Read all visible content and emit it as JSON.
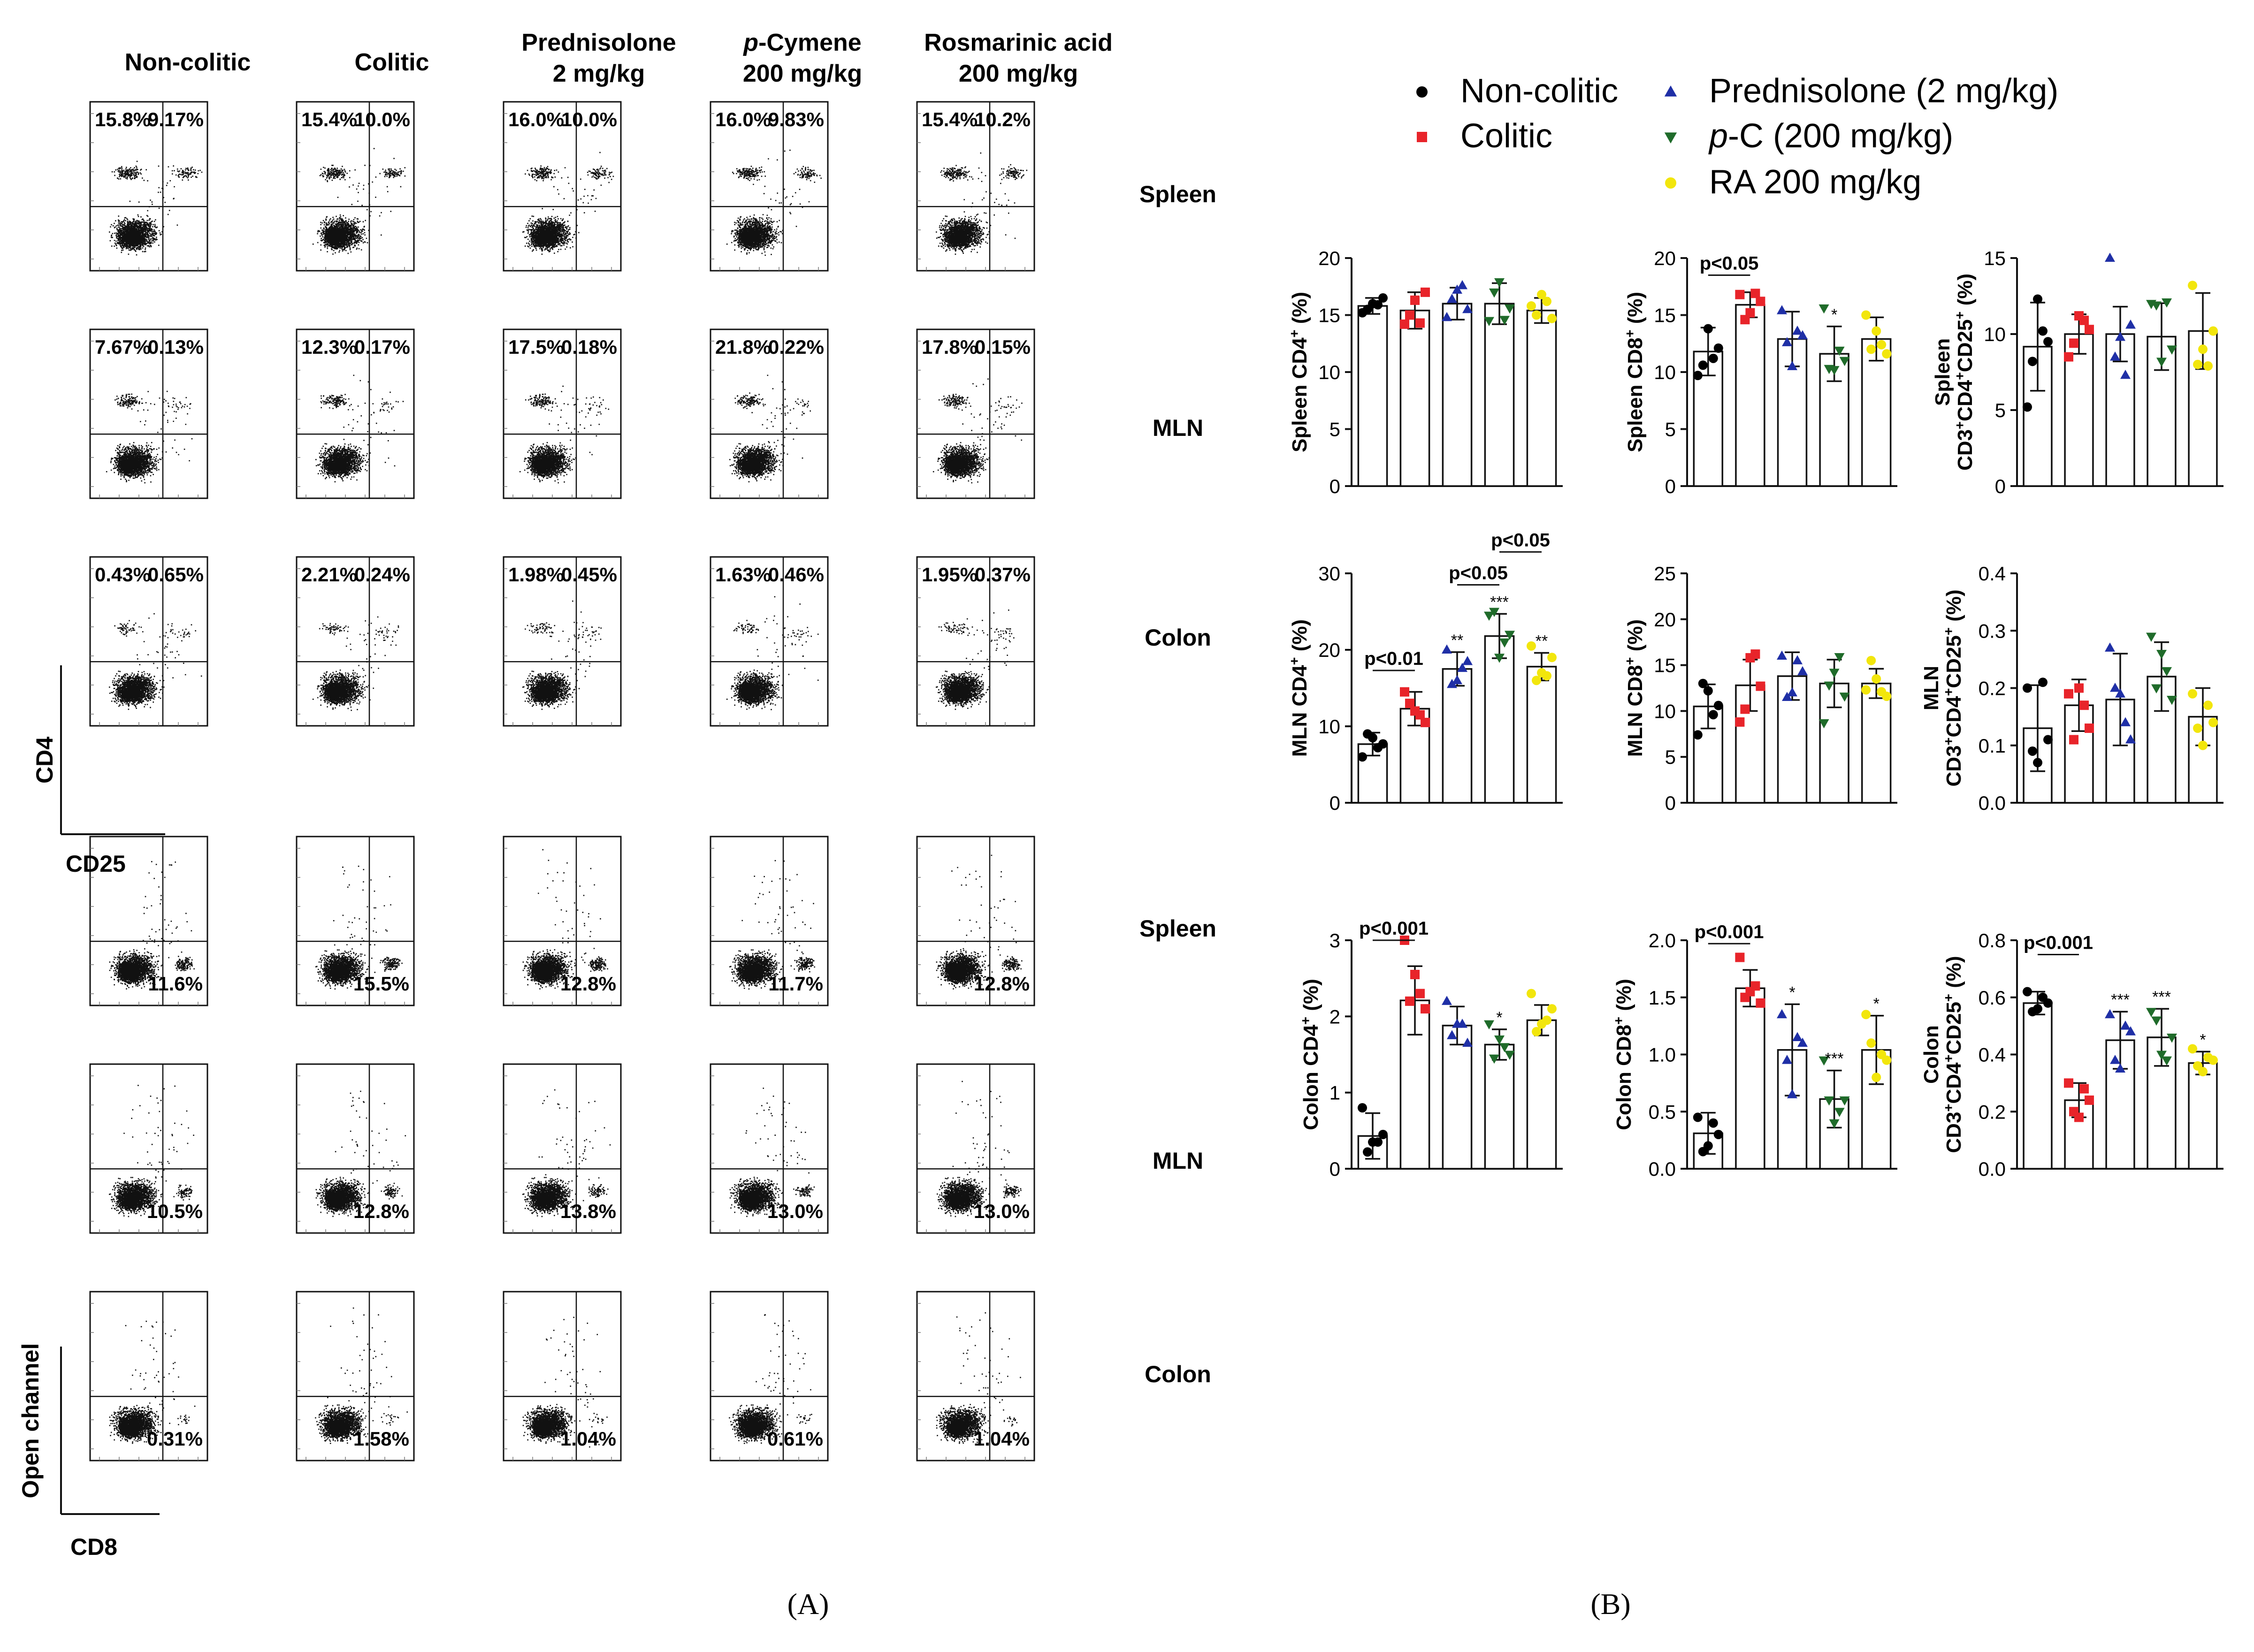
{
  "panel_labels": {
    "a": "(A)",
    "b": "(B)"
  },
  "flow": {
    "group_headers": [
      [
        "Non-colitic"
      ],
      [
        "Colitic"
      ],
      [
        "Prednisolone",
        "2 mg/kg"
      ],
      [
        "p-Cymene",
        "200 mg/kg"
      ],
      [
        "Rosmarinic acid",
        "200 mg/kg"
      ]
    ],
    "tissues": [
      "Spleen",
      "MLN",
      "Colon"
    ],
    "cd4_section": {
      "y_axis_label": "CD4",
      "x_axis_label": "CD25",
      "rows": [
        [
          [
            "15.8%",
            "9.17%"
          ],
          [
            "15.4%",
            "10.0%"
          ],
          [
            "16.0%",
            "10.0%"
          ],
          [
            "16.0%",
            "9.83%"
          ],
          [
            "15.4%",
            "10.2%"
          ]
        ],
        [
          [
            "7.67%",
            "0.13%"
          ],
          [
            "12.3%",
            "0.17%"
          ],
          [
            "17.5%",
            "0.18%"
          ],
          [
            "21.8%",
            "0.22%"
          ],
          [
            "17.8%",
            "0.15%"
          ]
        ],
        [
          [
            "0.43%",
            "0.65%"
          ],
          [
            "2.21%",
            "0.24%"
          ],
          [
            "1.98%",
            "0.45%"
          ],
          [
            "1.63%",
            "0.46%"
          ],
          [
            "1.95%",
            "0.37%"
          ]
        ]
      ]
    },
    "cd8_section": {
      "y_axis_label": "Open channel",
      "x_axis_label": "CD8",
      "rows": [
        [
          "11.6%",
          "15.5%",
          "12.8%",
          "11.7%",
          "12.8%"
        ],
        [
          "10.5%",
          "12.8%",
          "13.8%",
          "13.0%",
          "13.0%"
        ],
        [
          "0.31%",
          "1.58%",
          "1.04%",
          "0.61%",
          "1.04%"
        ]
      ]
    }
  },
  "legend": {
    "items": [
      {
        "label": "Non-colitic",
        "symbol": "circle",
        "color": "#000000"
      },
      {
        "label": "Colitic",
        "symbol": "square",
        "color": "#e8242a"
      },
      {
        "label": "Prednisolone (2 mg/kg)",
        "symbol": "triangle-up",
        "color": "#1f2fa6"
      },
      {
        "label": "p-C (200 mg/kg)",
        "symbol": "triangle-down",
        "color": "#1f6b2a"
      },
      {
        "label": "RA 200 mg/kg",
        "symbol": "circle",
        "color": "#f2e60c"
      }
    ]
  },
  "chart_data": [
    {
      "type": "bar",
      "ylabel": "Spleen CD4⁺ (%)",
      "ylim": [
        0,
        20
      ],
      "ticks": [
        "0",
        "5",
        "10",
        "15",
        "20"
      ],
      "categories": [
        "Non-colitic",
        "Colitic",
        "Prednisolone (2 mg/kg)",
        "p-C (200 mg/kg)",
        "RA 200 mg/kg"
      ],
      "values": [
        15.8,
        15.4,
        16.0,
        16.0,
        15.4
      ],
      "errors": [
        0.7,
        1.6,
        1.4,
        1.8,
        1.1
      ],
      "points": [
        [
          15.2,
          16.0,
          16.5,
          15.5,
          15.9
        ],
        [
          14.2,
          16.3,
          17.0,
          15.0,
          14.3
        ],
        [
          14.8,
          17.2,
          15.5,
          16.4,
          17.6
        ],
        [
          14.5,
          17.9,
          15.6,
          17.0,
          14.6
        ],
        [
          15.8,
          16.8,
          14.7,
          15.0,
          16.2
        ]
      ],
      "stars": [
        "",
        "",
        "",
        "",
        ""
      ],
      "brackets": []
    },
    {
      "type": "bar",
      "ylabel": "Spleen CD8⁺ (%)",
      "ylim": [
        0,
        20
      ],
      "ticks": [
        "0",
        "5",
        "10",
        "15",
        "20"
      ],
      "categories": [
        "Non-colitic",
        "Colitic",
        "Prednisolone (2 mg/kg)",
        "p-C (200 mg/kg)",
        "RA 200 mg/kg"
      ],
      "values": [
        11.8,
        15.9,
        12.9,
        11.6,
        12.9
      ],
      "errors": [
        2.1,
        1.1,
        2.4,
        2.4,
        1.9
      ],
      "points": [
        [
          9.7,
          13.8,
          12.1,
          10.6,
          11.2
        ],
        [
          16.8,
          15.2,
          16.2,
          14.6,
          16.9
        ],
        [
          15.4,
          10.5,
          13.2,
          12.6,
          13.6
        ],
        [
          15.6,
          10.2,
          11.0,
          10.3,
          11.9
        ],
        [
          15.0,
          13.6,
          11.6,
          12.0,
          12.4
        ]
      ],
      "stars": [
        "",
        "",
        "",
        "*",
        ""
      ],
      "brackets": [
        {
          "from": 0,
          "to": 1,
          "label": "p<0.05",
          "y": 18.5
        }
      ]
    },
    {
      "type": "bar",
      "ylabel": "Spleen CD3⁺CD4⁺CD25⁺ (%)",
      "ylim": [
        0,
        15
      ],
      "ticks": [
        "0",
        "5",
        "10",
        "15"
      ],
      "categories": [
        "Non-colitic",
        "Colitic",
        "Prednisolone (2 mg/kg)",
        "p-C (200 mg/kg)",
        "RA 200 mg/kg"
      ],
      "values": [
        9.17,
        10.0,
        10.0,
        9.83,
        10.2
      ],
      "errors": [
        2.9,
        1.3,
        1.8,
        2.2,
        2.5
      ],
      "points": [
        [
          5.2,
          12.3,
          9.5,
          8.2,
          10.2
        ],
        [
          8.5,
          11.2,
          10.3,
          9.4,
          10.9
        ],
        [
          15.0,
          9.8,
          10.6,
          8.5,
          7.3
        ],
        [
          12.0,
          8.2,
          9.0,
          11.9,
          12.1
        ],
        [
          13.2,
          9.0,
          10.2,
          8.0,
          7.9
        ]
      ],
      "stars": [
        "",
        "",
        "",
        "",
        ""
      ],
      "brackets": []
    },
    {
      "type": "bar",
      "ylabel": "MLN CD4⁺ (%)",
      "ylim": [
        0,
        30
      ],
      "ticks": [
        "0",
        "10",
        "20",
        "30"
      ],
      "categories": [
        "Non-colitic",
        "Colitic",
        "Prednisolone (2 mg/kg)",
        "p-C (200 mg/kg)",
        "RA 200 mg/kg"
      ],
      "values": [
        7.67,
        12.3,
        17.5,
        21.8,
        17.8
      ],
      "errors": [
        1.5,
        2.2,
        2.2,
        2.9,
        1.8
      ],
      "points": [
        [
          6.0,
          8.5,
          7.7,
          9.0,
          7.2
        ],
        [
          14.5,
          12.0,
          10.5,
          13.0,
          11.5
        ],
        [
          20.0,
          16.0,
          18.5,
          15.5,
          17.6
        ],
        [
          24.5,
          19.0,
          22.0,
          25.0,
          21.0
        ],
        [
          20.5,
          17.0,
          19.0,
          16.0,
          16.6
        ]
      ],
      "stars": [
        "",
        "",
        "**",
        "***",
        "**"
      ],
      "brackets": [
        {
          "from": 0,
          "to": 1,
          "label": "p<0.01",
          "y": 17.3
        },
        {
          "from": 2,
          "to": 3,
          "label": "p<0.05",
          "y": 28.5
        },
        {
          "from": 3,
          "to": 4,
          "label": "p<0.05",
          "y": 32.8
        }
      ]
    },
    {
      "type": "bar",
      "ylabel": "MLN CD8⁺ (%)",
      "ylim": [
        0,
        25
      ],
      "ticks": [
        "0",
        "5",
        "10",
        "15",
        "20",
        "25"
      ],
      "categories": [
        "Non-colitic",
        "Colitic",
        "Prednisolone (2 mg/kg)",
        "p-C (200 mg/kg)",
        "RA 200 mg/kg"
      ],
      "values": [
        10.5,
        12.8,
        13.8,
        13.0,
        13.0
      ],
      "errors": [
        2.4,
        2.8,
        2.6,
        2.6,
        1.6
      ],
      "points": [
        [
          7.4,
          12.2,
          10.6,
          13.0,
          9.6
        ],
        [
          8.8,
          15.8,
          12.7,
          10.2,
          16.2
        ],
        [
          16.0,
          12.0,
          14.3,
          11.5,
          15.5
        ],
        [
          8.7,
          14.2,
          11.6,
          12.8,
          15.9
        ],
        [
          12.3,
          13.5,
          11.6,
          15.5,
          12.1
        ]
      ],
      "stars": [
        "",
        "",
        "",
        "",
        ""
      ],
      "brackets": []
    },
    {
      "type": "bar",
      "ylabel": "MLN CD3⁺CD4⁺CD25⁺ (%)",
      "ylim": [
        0,
        0.4
      ],
      "ticks": [
        "0.0",
        "0.1",
        "0.2",
        "0.3",
        "0.4"
      ],
      "categories": [
        "Non-colitic",
        "Colitic",
        "Prednisolone (2 mg/kg)",
        "p-C (200 mg/kg)",
        "RA 200 mg/kg"
      ],
      "values": [
        0.13,
        0.17,
        0.18,
        0.22,
        0.15
      ],
      "errors": [
        0.075,
        0.045,
        0.08,
        0.06,
        0.05
      ],
      "points": [
        [
          0.2,
          0.07,
          0.11,
          0.09,
          0.21
        ],
        [
          0.19,
          0.2,
          0.13,
          0.11,
          0.17
        ],
        [
          0.27,
          0.19,
          0.11,
          0.2,
          0.14
        ],
        [
          0.29,
          0.26,
          0.18,
          0.2,
          0.23
        ],
        [
          0.19,
          0.1,
          0.14,
          0.13,
          0.17
        ]
      ],
      "stars": [
        "",
        "",
        "",
        "",
        ""
      ],
      "brackets": []
    },
    {
      "type": "bar",
      "ylabel": "Colon CD4⁺ (%)",
      "ylim": [
        0,
        3
      ],
      "ticks": [
        "0",
        "1",
        "2",
        "3"
      ],
      "categories": [
        "Non-colitic",
        "Colitic",
        "Prednisolone (2 mg/kg)",
        "p-C (200 mg/kg)",
        "RA 200 mg/kg"
      ],
      "values": [
        0.43,
        2.21,
        1.88,
        1.63,
        1.95
      ],
      "errors": [
        0.3,
        0.45,
        0.25,
        0.2,
        0.2
      ],
      "points": [
        [
          0.8,
          0.35,
          0.45,
          0.22,
          0.35
        ],
        [
          3.0,
          2.55,
          2.1,
          2.2,
          2.3
        ],
        [
          2.2,
          1.9,
          1.65,
          1.75,
          1.9
        ],
        [
          1.9,
          1.7,
          1.5,
          1.45,
          1.6
        ],
        [
          2.3,
          1.9,
          2.1,
          1.8,
          1.95
        ]
      ],
      "stars": [
        "",
        "",
        "",
        "*",
        ""
      ],
      "brackets": [
        {
          "from": 0,
          "to": 1,
          "label": "p<0.001",
          "y": 3.0
        }
      ]
    },
    {
      "type": "bar",
      "ylabel": "Colon CD8⁺ (%)",
      "ylim": [
        0,
        2.0
      ],
      "ticks": [
        "0.0",
        "0.5",
        "1.0",
        "1.5",
        "2.0"
      ],
      "categories": [
        "Non-colitic",
        "Colitic",
        "Prednisolone (2 mg/kg)",
        "p-C (200 mg/kg)",
        "RA 200 mg/kg"
      ],
      "values": [
        0.31,
        1.58,
        1.04,
        0.61,
        1.04
      ],
      "errors": [
        0.18,
        0.16,
        0.4,
        0.25,
        0.3
      ],
      "points": [
        [
          0.45,
          0.2,
          0.3,
          0.15,
          0.4
        ],
        [
          1.85,
          1.55,
          1.45,
          1.5,
          1.6
        ],
        [
          1.35,
          0.65,
          1.1,
          0.95,
          1.15
        ],
        [
          0.95,
          0.4,
          0.6,
          0.6,
          0.5
        ],
        [
          1.35,
          0.8,
          0.95,
          1.1,
          1.0
        ]
      ],
      "stars": [
        "",
        "",
        "*",
        "***",
        "*"
      ],
      "brackets": [
        {
          "from": 0,
          "to": 1,
          "label": "p<0.001",
          "y": 1.97
        }
      ]
    },
    {
      "type": "bar",
      "ylabel": "Colon CD3⁺CD4⁺CD25⁺ (%)",
      "ylim": [
        0,
        0.8
      ],
      "ticks": [
        "0.0",
        "0.2",
        "0.4",
        "0.6",
        "0.8"
      ],
      "categories": [
        "Non-colitic",
        "Colitic",
        "Prednisolone (2 mg/kg)",
        "p-C (200 mg/kg)",
        "RA 200 mg/kg"
      ],
      "values": [
        0.58,
        0.24,
        0.45,
        0.46,
        0.37
      ],
      "errors": [
        0.04,
        0.06,
        0.1,
        0.1,
        0.04
      ],
      "points": [
        [
          0.62,
          0.56,
          0.58,
          0.55,
          0.6
        ],
        [
          0.3,
          0.18,
          0.24,
          0.2,
          0.28
        ],
        [
          0.54,
          0.35,
          0.48,
          0.38,
          0.5
        ],
        [
          0.55,
          0.4,
          0.46,
          0.52,
          0.38
        ],
        [
          0.42,
          0.34,
          0.38,
          0.36,
          0.39
        ]
      ],
      "stars": [
        "",
        "",
        "***",
        "***",
        "*"
      ],
      "brackets": [
        {
          "from": 0,
          "to": 1,
          "label": "p<0.001",
          "y": 0.75
        }
      ]
    }
  ]
}
